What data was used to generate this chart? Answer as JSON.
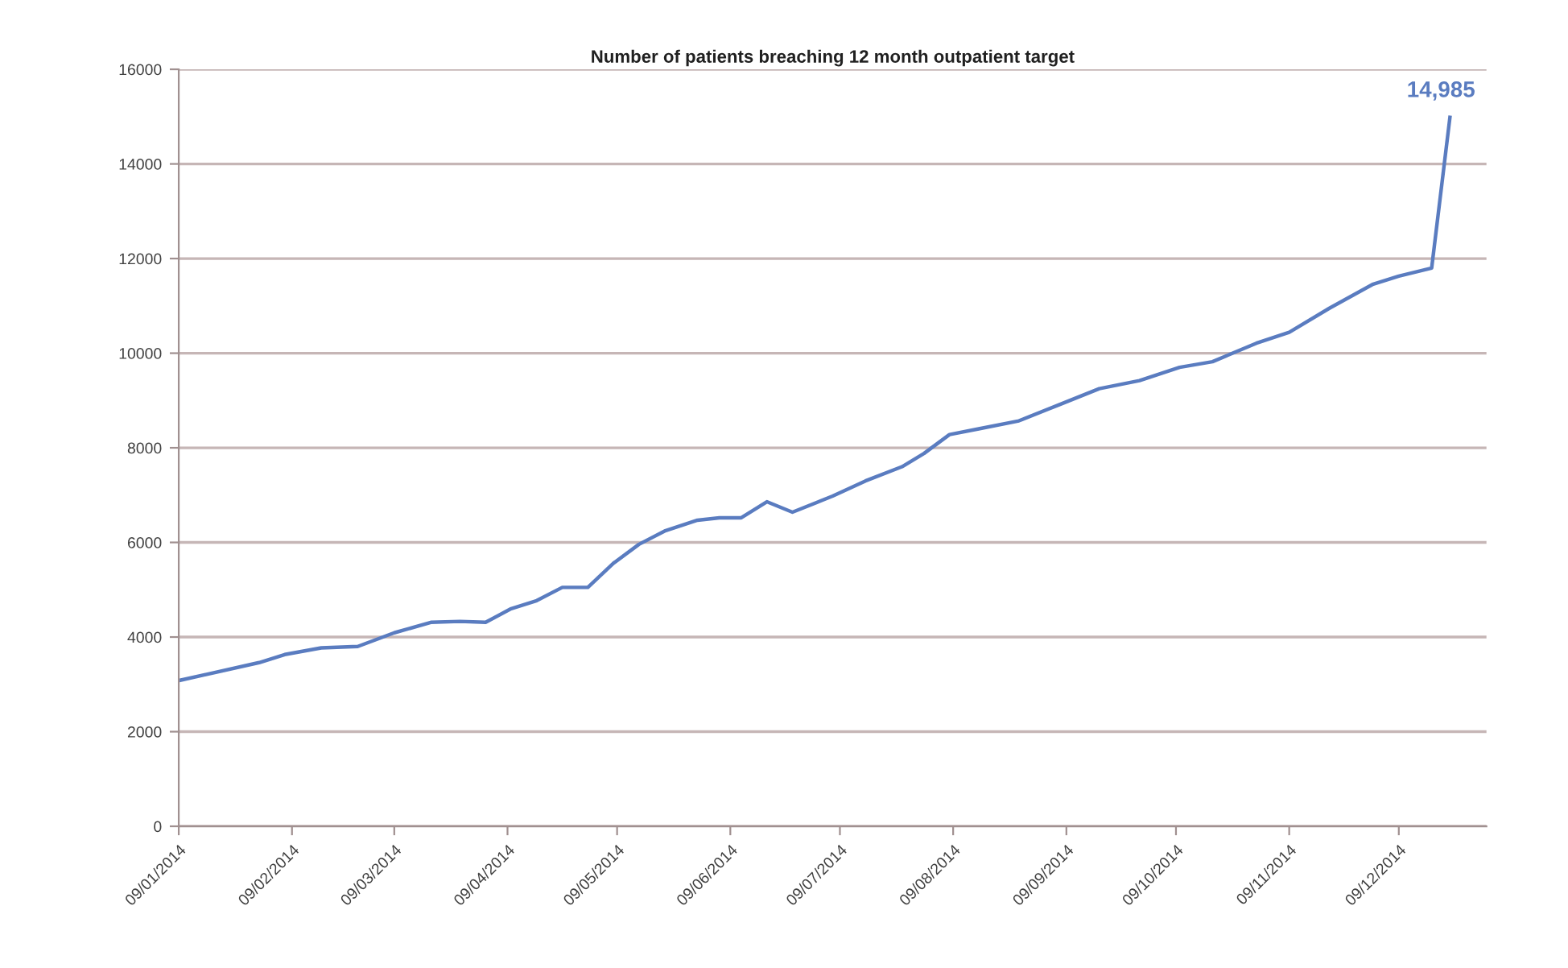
{
  "chart_data": {
    "type": "line",
    "title": "Number of patients breaching 12 month outpatient target",
    "x": [
      "2014-01-09",
      "2014-01-31",
      "2014-02-07",
      "2014-02-17",
      "2014-02-27",
      "2014-03-09",
      "2014-03-19",
      "2014-03-27",
      "2014-04-03",
      "2014-04-10",
      "2014-04-17",
      "2014-04-24",
      "2014-05-01",
      "2014-05-08",
      "2014-05-15",
      "2014-05-22",
      "2014-05-31",
      "2014-06-06",
      "2014-06-12",
      "2014-06-19",
      "2014-06-26",
      "2014-07-07",
      "2014-07-16",
      "2014-07-26",
      "2014-08-01",
      "2014-08-08",
      "2014-08-16",
      "2014-08-27",
      "2014-09-07",
      "2014-09-18",
      "2014-09-29",
      "2014-10-10",
      "2014-10-19",
      "2014-10-31",
      "2014-11-09",
      "2014-11-20",
      "2014-12-02",
      "2014-12-09",
      "2014-12-18",
      "2014-12-23"
    ],
    "series": [
      {
        "color": "#5a7cc0",
        "values": [
          3080,
          3460,
          3630,
          3770,
          3800,
          4090,
          4310,
          4330,
          4310,
          4600,
          4770,
          5050,
          5050,
          5560,
          5960,
          6240,
          6470,
          6520,
          6520,
          6860,
          6640,
          6980,
          7300,
          7600,
          7880,
          8280,
          8400,
          8570,
          8910,
          9250,
          9420,
          9700,
          9820,
          10210,
          10440,
          10950,
          11460,
          11630,
          11800,
          14985
        ],
        "value_labels": [
          null,
          null,
          null,
          null,
          null,
          null,
          null,
          null,
          null,
          null,
          null,
          null,
          null,
          null,
          null,
          null,
          null,
          null,
          null,
          null,
          null,
          null,
          null,
          null,
          null,
          null,
          null,
          null,
          null,
          null,
          null,
          null,
          null,
          null,
          null,
          null,
          null,
          null,
          null,
          "14,985"
        ]
      }
    ],
    "xlim": [
      "2014-01-09",
      "2015-01-02"
    ],
    "xticks": [
      {
        "value": "2014-01-09",
        "label": "09/01/2014"
      },
      {
        "value": "2014-02-09",
        "label": "09/02/2014"
      },
      {
        "value": "2014-03-09",
        "label": "09/03/2014"
      },
      {
        "value": "2014-04-09",
        "label": "09/04/2014"
      },
      {
        "value": "2014-05-09",
        "label": "09/05/2014"
      },
      {
        "value": "2014-06-09",
        "label": "09/06/2014"
      },
      {
        "value": "2014-07-09",
        "label": "09/07/2014"
      },
      {
        "value": "2014-08-09",
        "label": "09/08/2014"
      },
      {
        "value": "2014-09-09",
        "label": "09/09/2014"
      },
      {
        "value": "2014-10-09",
        "label": "09/10/2014"
      },
      {
        "value": "2014-11-09",
        "label": "09/11/2014"
      },
      {
        "value": "2014-12-09",
        "label": "09/12/2014"
      }
    ],
    "ylim": [
      0,
      16000
    ],
    "yticks": [
      0,
      2000,
      4000,
      6000,
      8000,
      10000,
      12000,
      14000,
      16000
    ],
    "grid": "y",
    "line_style": "solid"
  }
}
